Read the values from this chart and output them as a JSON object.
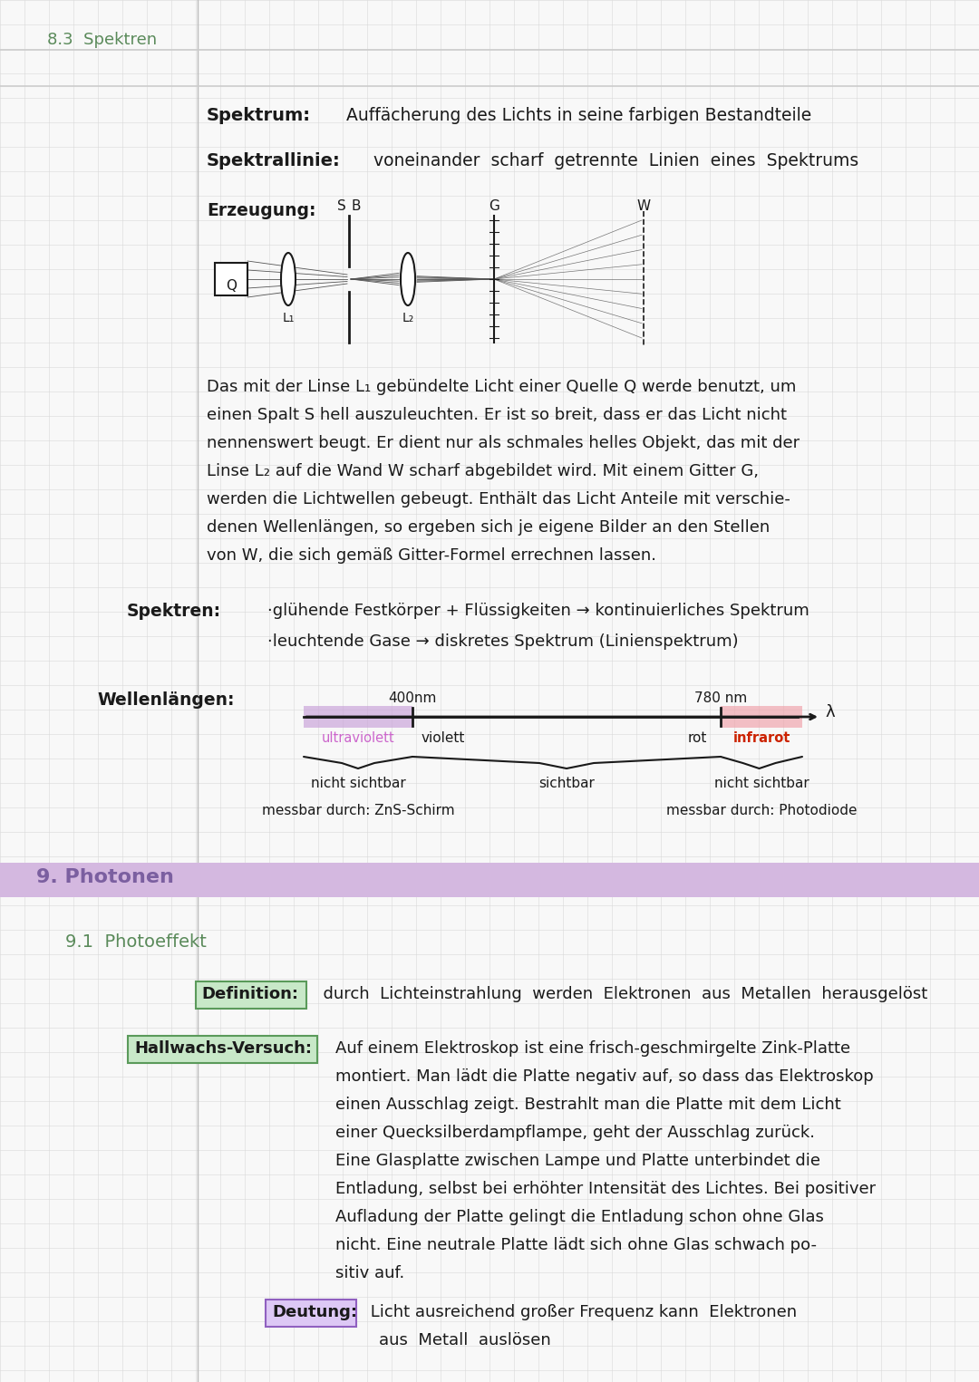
{
  "bg_color": "#f8f8f8",
  "grid_color": "#d8d8d8",
  "section_header_color": "#7b5fa0",
  "section_header_bg": "#d4b8e0",
  "subsection_color": "#5a8a5a",
  "text_color": "#1a1a1a",
  "margin_line_color": "#bbbbbb",
  "title_top": "8.3  Spektren",
  "section9_title": "9. Photonen",
  "sub91_title": "9.1  Photoeffekt",
  "def_label": "Definition:",
  "def_text": "  durch  Lichteinstrahlung  werden  Elektronen  aus  Metallen  herausgelöst",
  "hallwachs_label": "Hallwachs-Versuch:",
  "deutung_label": "Deutung:",
  "deutung_line1": " Licht ausreichend großer Frequenz kann  Elektronen",
  "deutung_line2": "aus  Metall  auslösen"
}
